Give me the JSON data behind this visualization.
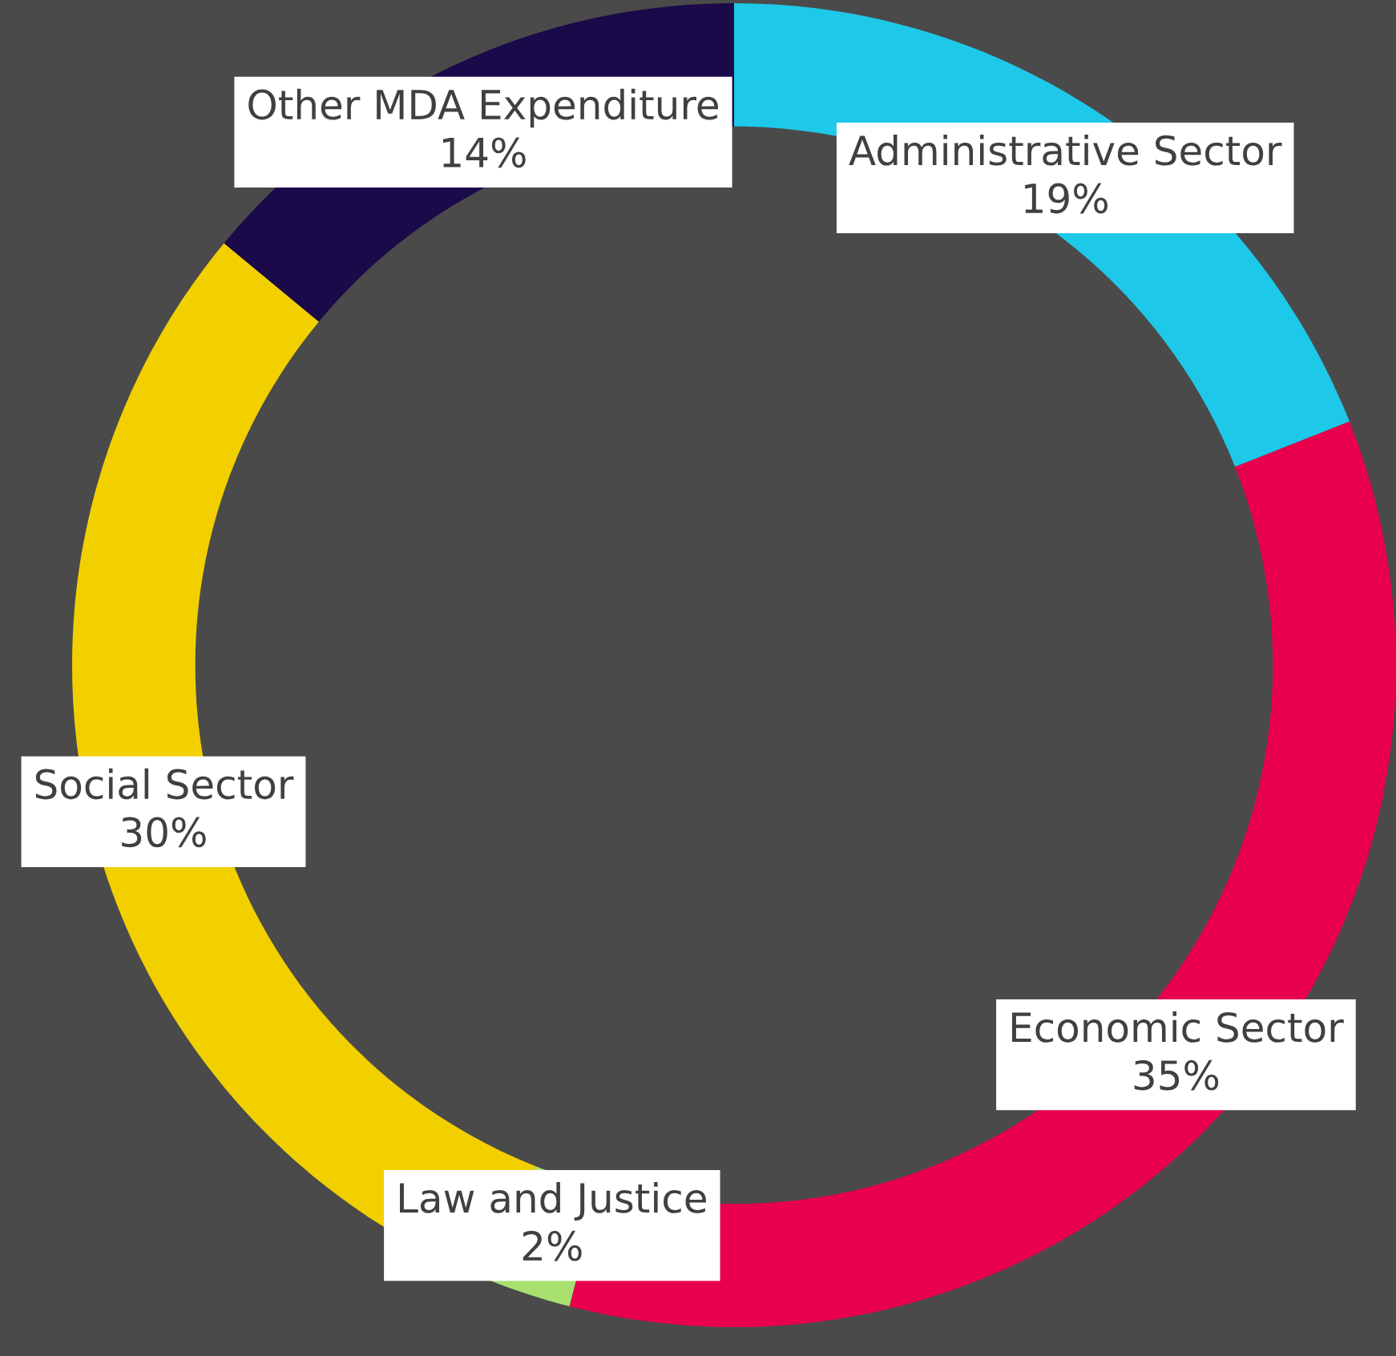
{
  "chart_data": {
    "type": "donut",
    "categories": [
      "Administrative Sector",
      "Economic Sector",
      "Law and Justice",
      "Social Sector",
      "Other MDA Expenditure"
    ],
    "values": [
      19,
      35,
      2,
      30,
      14
    ],
    "colors": [
      "#1ec8e8",
      "#e8004e",
      "#a8e070",
      "#f2d000",
      "#1a0a4a"
    ],
    "value_labels": [
      "19%",
      "35%",
      "2%",
      "30%",
      "14%"
    ],
    "legend": false
  }
}
